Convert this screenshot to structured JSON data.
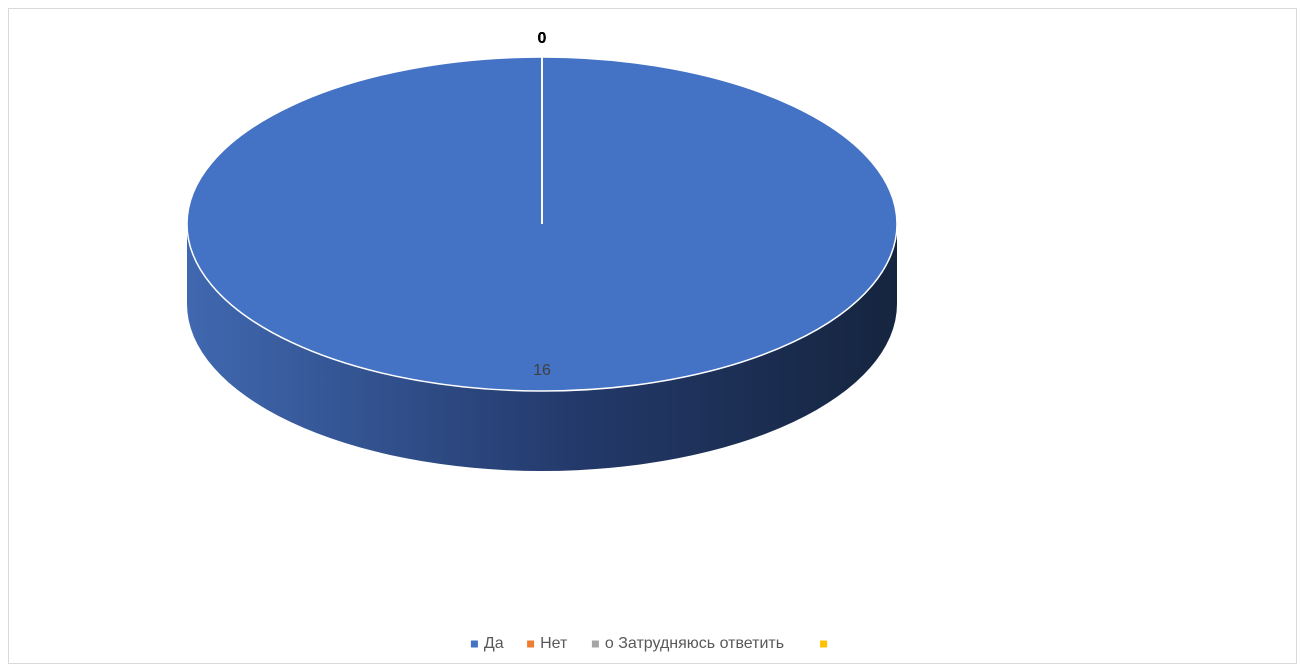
{
  "chart_data": {
    "type": "pie",
    "categories": [
      "Да",
      "Нет",
      "о Затрудняюсь ответить",
      null
    ],
    "series": [
      {
        "values": [
          16,
          0,
          0,
          0
        ]
      }
    ],
    "colors": [
      "#4472c4",
      "#ed7d31",
      "#a5a5a5",
      "#ffc000"
    ],
    "legend": "bottom",
    "style": "3d"
  }
}
